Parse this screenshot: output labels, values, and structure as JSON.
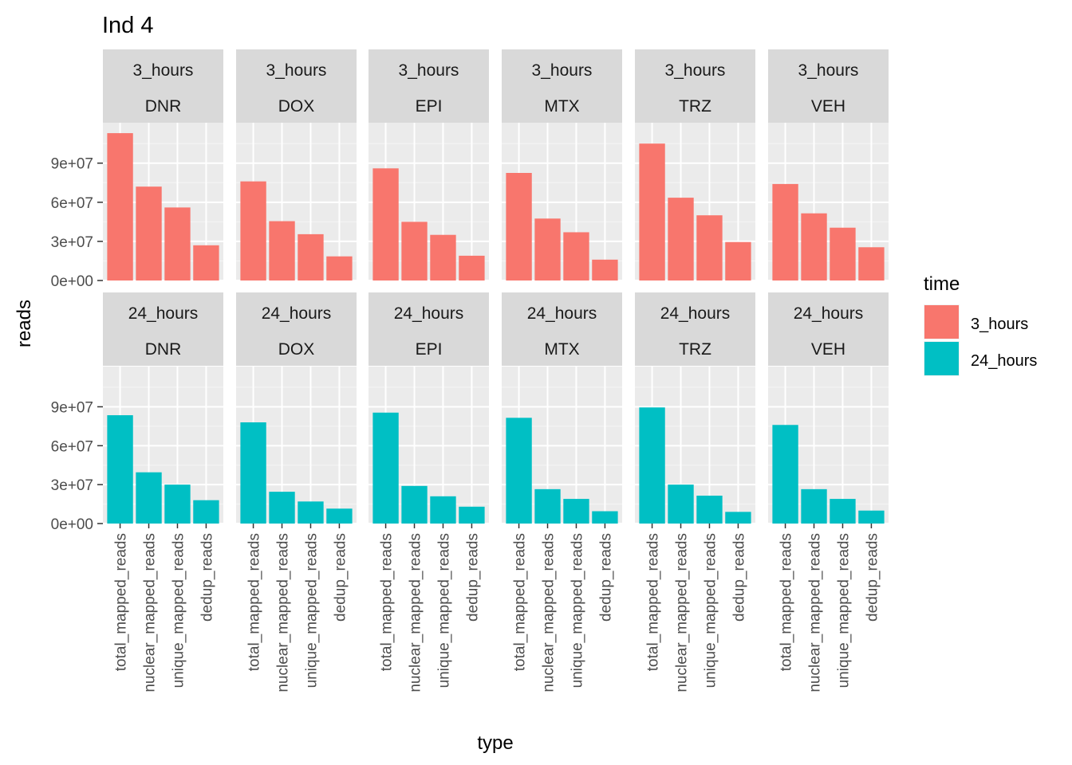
{
  "chart_data": {
    "type": "bar",
    "title": "Ind 4",
    "xlabel": "type",
    "ylabel": "reads",
    "categories": [
      "total_mapped_reads",
      "nuclear_mapped_reads",
      "unique_mapped_reads",
      "dedup_reads"
    ],
    "ylim": [
      0,
      121000000
    ],
    "yticks": [
      0,
      30000000,
      60000000,
      90000000
    ],
    "ytick_labels": [
      "0e+00",
      "3e+07",
      "6e+07",
      "9e+07"
    ],
    "grid": true,
    "facet_rows": [
      "3_hours",
      "24_hours"
    ],
    "facet_cols": [
      "DNR",
      "DOX",
      "EPI",
      "MTX",
      "TRZ",
      "VEH"
    ],
    "legend": {
      "title": "time",
      "position": "right",
      "entries": [
        {
          "label": "3_hours",
          "color": "#F8766D"
        },
        {
          "label": "24_hours",
          "color": "#00BFC4"
        }
      ]
    },
    "panels": [
      {
        "time": "3_hours",
        "drug": "DNR",
        "values": [
          113000000,
          72000000,
          56000000,
          27000000
        ]
      },
      {
        "time": "3_hours",
        "drug": "DOX",
        "values": [
          76000000,
          45500000,
          35500000,
          18500000
        ]
      },
      {
        "time": "3_hours",
        "drug": "EPI",
        "values": [
          86000000,
          45000000,
          35000000,
          19000000
        ]
      },
      {
        "time": "3_hours",
        "drug": "MTX",
        "values": [
          82500000,
          47500000,
          37000000,
          16000000
        ]
      },
      {
        "time": "3_hours",
        "drug": "TRZ",
        "values": [
          105000000,
          63500000,
          50000000,
          29500000
        ]
      },
      {
        "time": "3_hours",
        "drug": "VEH",
        "values": [
          74000000,
          51500000,
          40500000,
          25500000
        ]
      },
      {
        "time": "24_hours",
        "drug": "DNR",
        "values": [
          83500000,
          39500000,
          30000000,
          18000000
        ]
      },
      {
        "time": "24_hours",
        "drug": "DOX",
        "values": [
          78000000,
          24500000,
          17000000,
          11500000
        ]
      },
      {
        "time": "24_hours",
        "drug": "EPI",
        "values": [
          85500000,
          29000000,
          21000000,
          13000000
        ]
      },
      {
        "time": "24_hours",
        "drug": "MTX",
        "values": [
          81500000,
          26500000,
          19000000,
          9500000
        ]
      },
      {
        "time": "24_hours",
        "drug": "TRZ",
        "values": [
          89500000,
          30000000,
          21500000,
          9000000
        ]
      },
      {
        "time": "24_hours",
        "drug": "VEH",
        "values": [
          76000000,
          26500000,
          19000000,
          10000000
        ]
      }
    ]
  }
}
